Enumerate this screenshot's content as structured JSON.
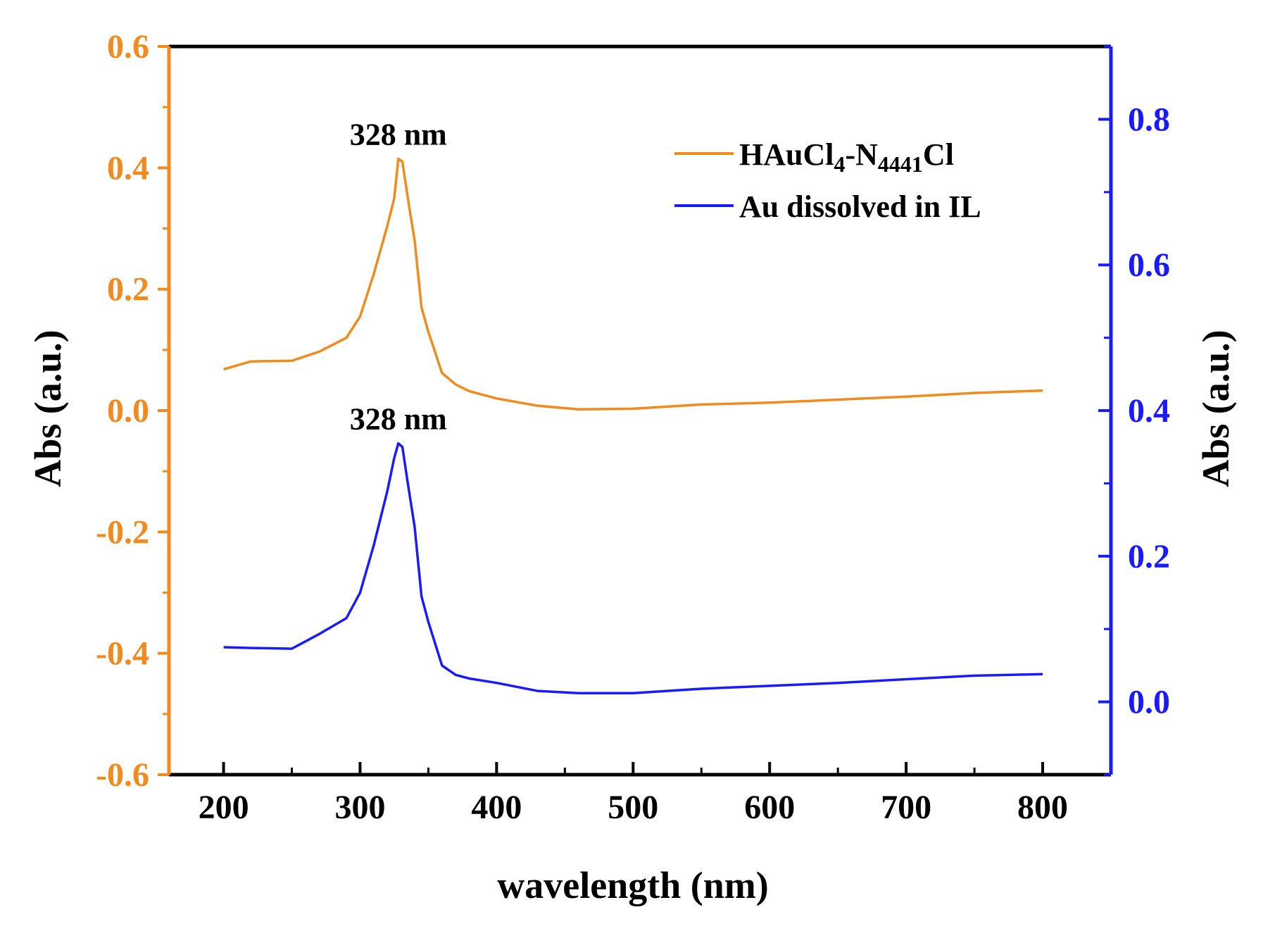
{
  "chart_data": {
    "type": "line",
    "title": "",
    "xlabel": "wavelength (nm)",
    "ylabel_left": "Abs (a.u.)",
    "ylabel_right": "Abs (a.u.)",
    "xlim": [
      160,
      850
    ],
    "ylim_left": [
      -0.6,
      0.6
    ],
    "ylim_right": [
      -0.1,
      0.9
    ],
    "x_ticks": [
      200,
      300,
      400,
      500,
      600,
      700,
      800
    ],
    "x_tick_labels": [
      "200",
      "300",
      "400",
      "500",
      "600",
      "700",
      "800"
    ],
    "y_left_ticks": [
      -0.6,
      -0.4,
      -0.2,
      0.0,
      0.2,
      0.4,
      0.6
    ],
    "y_left_tick_labels": [
      "-0.6",
      "-0.4",
      "-0.2",
      "0.0",
      "0.2",
      "0.4",
      "0.6"
    ],
    "y_right_ticks": [
      0.0,
      0.2,
      0.4,
      0.6,
      0.8
    ],
    "y_right_tick_labels": [
      "0.0",
      "0.2",
      "0.4",
      "0.6",
      "0.8"
    ],
    "left_axis_color": "#f28a1e",
    "right_axis_color": "#1a1aff",
    "legend_position": "top-right",
    "series": [
      {
        "name": "HAuCl4-N4441Cl",
        "legend_main": "HAuCl",
        "legend_sub1": "4",
        "legend_mid": "-N",
        "legend_sub2": "4441",
        "legend_end": "Cl",
        "axis": "left",
        "color": "#f28a1e",
        "x": [
          200,
          220,
          250,
          270,
          290,
          300,
          310,
          320,
          325,
          328,
          331,
          335,
          340,
          345,
          350,
          360,
          370,
          380,
          400,
          430,
          460,
          500,
          550,
          600,
          650,
          700,
          750,
          800
        ],
        "y": [
          0.068,
          0.081,
          0.082,
          0.097,
          0.12,
          0.155,
          0.225,
          0.305,
          0.35,
          0.415,
          0.41,
          0.35,
          0.28,
          0.17,
          0.13,
          0.062,
          0.043,
          0.032,
          0.02,
          0.008,
          0.002,
          0.003,
          0.01,
          0.013,
          0.018,
          0.023,
          0.029,
          0.033
        ]
      },
      {
        "name": "Au dissolved in IL",
        "legend_main": "Au dissolved in IL",
        "axis": "right",
        "color": "#1a1aff",
        "x": [
          200,
          220,
          250,
          270,
          290,
          300,
          310,
          320,
          325,
          328,
          331,
          335,
          340,
          345,
          350,
          360,
          370,
          380,
          400,
          430,
          460,
          500,
          550,
          600,
          650,
          700,
          750,
          800
        ],
        "y": [
          0.075,
          0.074,
          0.073,
          0.093,
          0.115,
          0.15,
          0.215,
          0.29,
          0.335,
          0.355,
          0.35,
          0.3,
          0.24,
          0.145,
          0.11,
          0.05,
          0.037,
          0.032,
          0.026,
          0.015,
          0.012,
          0.012,
          0.018,
          0.022,
          0.026,
          0.031,
          0.036,
          0.038
        ]
      }
    ],
    "annotations": [
      {
        "text": "328 nm",
        "series": 0,
        "x": 328
      },
      {
        "text": "328 nm",
        "series": 1,
        "x": 328
      }
    ]
  }
}
